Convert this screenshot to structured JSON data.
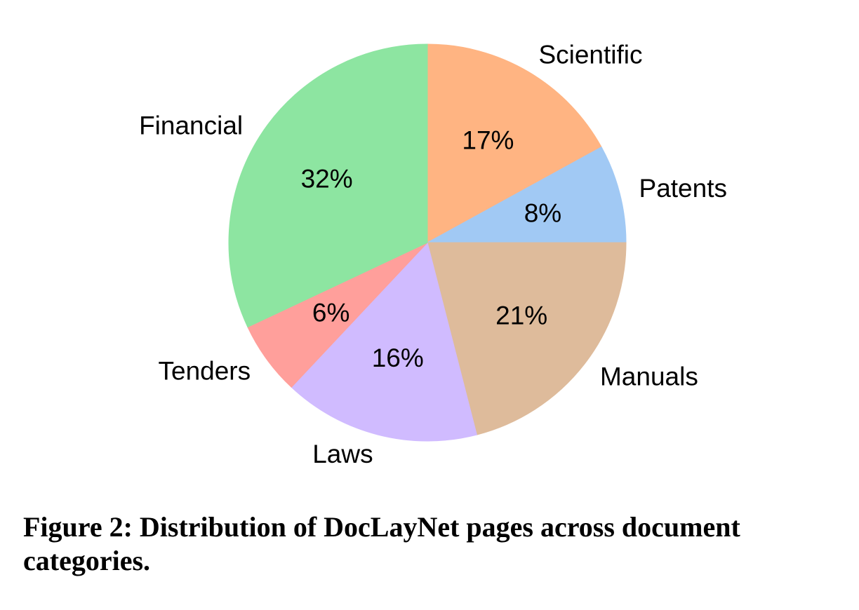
{
  "figure": {
    "caption": "Figure 2: Distribution of DocLayNet pages across document categories."
  },
  "chart_data": {
    "type": "pie",
    "title": "",
    "labels": [
      "Scientific",
      "Patents",
      "Manuals",
      "Laws",
      "Tenders",
      "Financial"
    ],
    "values": [
      17,
      8,
      21,
      16,
      6,
      32
    ],
    "colors": [
      "#ffb482",
      "#a1c9f4",
      "#debb9b",
      "#d0bbff",
      "#ff9f9b",
      "#8de5a1"
    ],
    "start_angle_deg": 90,
    "direction": "clockwise",
    "label_distance": 1.1,
    "percent_distance": 0.6,
    "text_color": "#000000",
    "background": "#ffffff",
    "legend": "none",
    "grid": "off"
  }
}
